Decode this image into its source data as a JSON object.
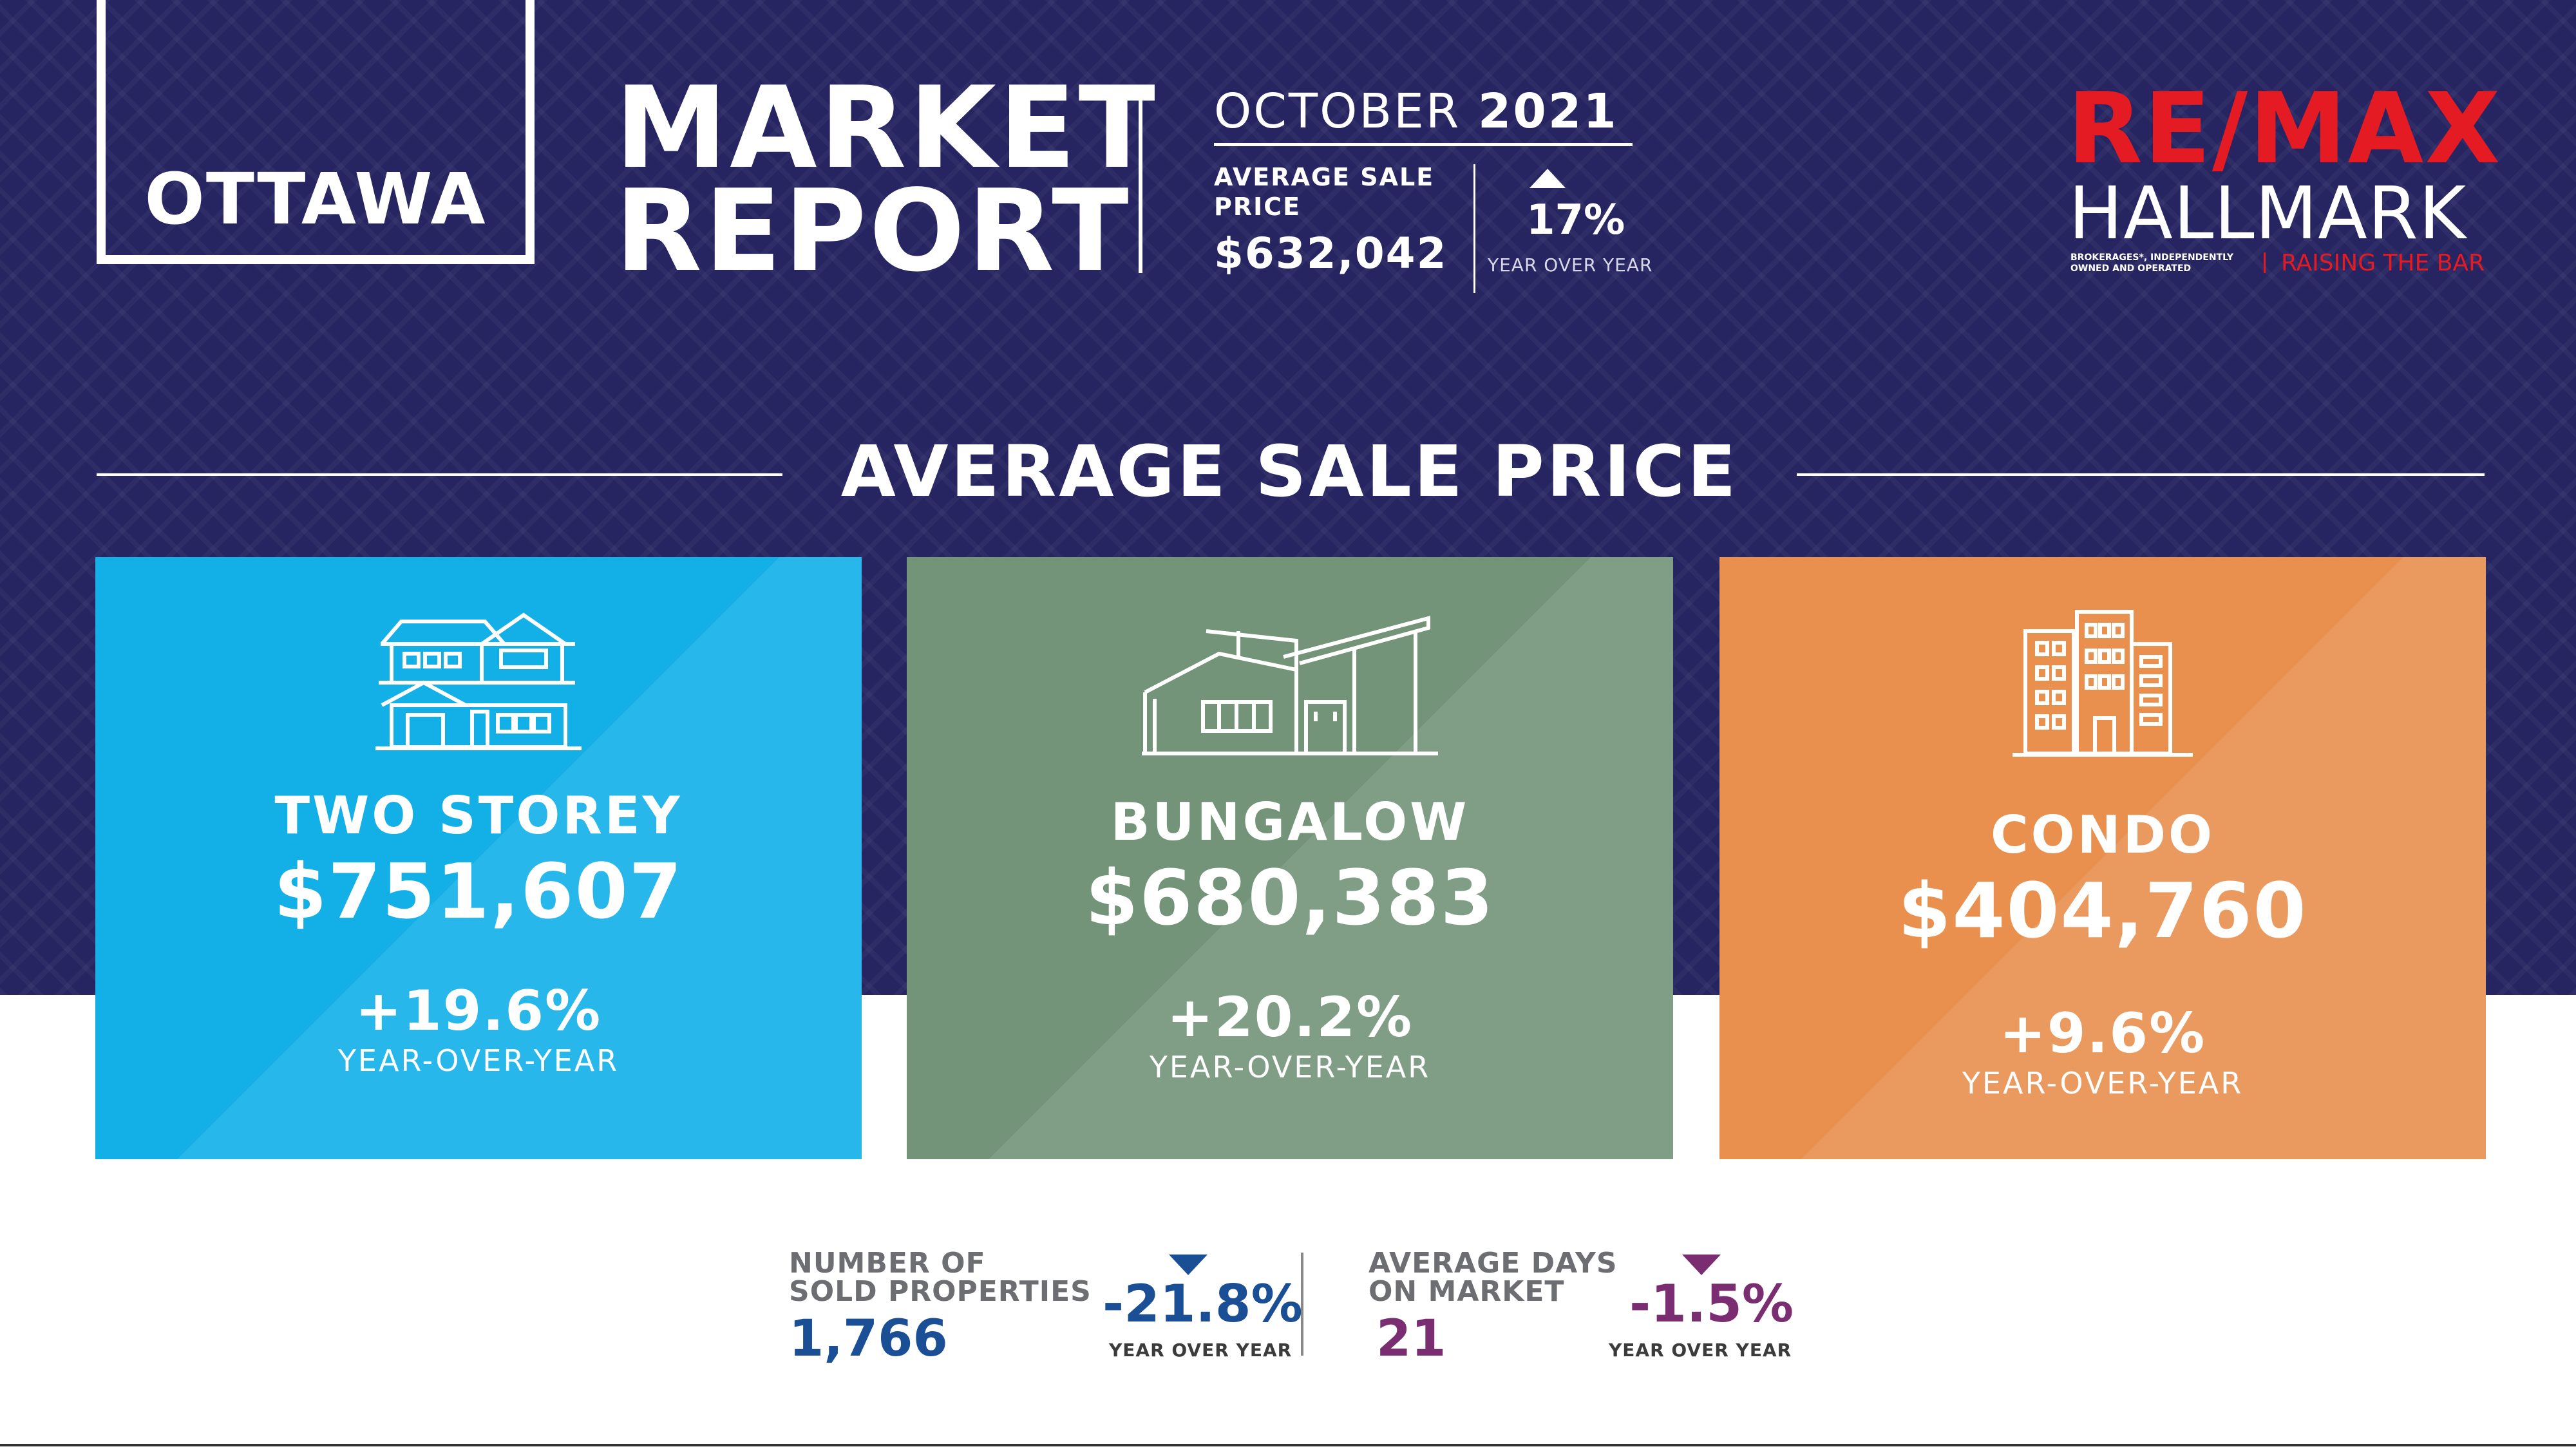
{
  "header": {
    "city": "OTTAWA",
    "title_line1": "MARKET",
    "title_line2": "REPORT",
    "month": "OCTOBER",
    "year": "2021",
    "avg_label_line1": "AVERAGE SALE",
    "avg_label_line2": "PRICE",
    "avg_value": "$632,042",
    "yoy_pct": "17%",
    "yoy_label": "YEAR OVER YEAR"
  },
  "logo": {
    "top": "RE/MAX",
    "bottom": "HALLMARK",
    "note_line1": "BROKERAGES*, INDEPENDENTLY",
    "note_line2": "OWNED AND OPERATED",
    "tagline": "RAISING THE BAR"
  },
  "section": {
    "title": "AVERAGE SALE PRICE"
  },
  "cards": [
    {
      "label": "TWO STOREY",
      "price": "$751,607",
      "pct": "+19.6%",
      "yoy": "YEAR-OVER-YEAR",
      "icon": "two-storey-house-icon",
      "color": "#13b0e8"
    },
    {
      "label": "BUNGALOW",
      "price": "$680,383",
      "pct": "+20.2%",
      "yoy": "YEAR-OVER-YEAR",
      "icon": "bungalow-icon",
      "color": "#739479"
    },
    {
      "label": "CONDO",
      "price": "$404,760",
      "pct": "+9.6%",
      "yoy": "YEAR-OVER-YEAR",
      "icon": "condo-building-icon",
      "color": "#e9904f"
    }
  ],
  "stats": [
    {
      "label_line1": "NUMBER OF",
      "label_line2": "SOLD PROPERTIES",
      "value": "1,766",
      "pct": "-21.8%",
      "yoy": "YEAR OVER YEAR",
      "color": "#1a4f96"
    },
    {
      "label_line1": "AVERAGE DAYS",
      "label_line2": "ON MARKET",
      "value": "21",
      "pct": "-1.5%",
      "yoy": "YEAR OVER YEAR",
      "color": "#7a2d70"
    }
  ]
}
